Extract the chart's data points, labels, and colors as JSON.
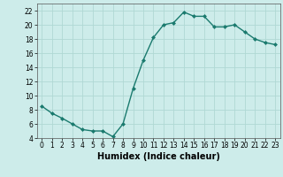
{
  "x": [
    0,
    1,
    2,
    3,
    4,
    5,
    6,
    7,
    8,
    9,
    10,
    11,
    12,
    13,
    14,
    15,
    16,
    17,
    18,
    19,
    20,
    21,
    22,
    23
  ],
  "y": [
    8.5,
    7.5,
    6.8,
    6.0,
    5.2,
    5.0,
    5.0,
    4.2,
    6.0,
    11.0,
    15.0,
    18.2,
    20.0,
    20.3,
    21.8,
    21.2,
    21.2,
    19.7,
    19.7,
    20.0,
    19.0,
    18.0,
    17.5,
    17.2
  ],
  "line_color": "#1a7a6e",
  "marker": "D",
  "marker_size": 2,
  "line_width": 1.0,
  "bg_color": "#cdecea",
  "grid_color": "#b0d8d4",
  "xlabel": "Humidex (Indice chaleur)",
  "ylim": [
    4,
    23
  ],
  "xlim": [
    -0.5,
    23.5
  ],
  "yticks": [
    4,
    6,
    8,
    10,
    12,
    14,
    16,
    18,
    20,
    22
  ],
  "xticks": [
    0,
    1,
    2,
    3,
    4,
    5,
    6,
    7,
    8,
    9,
    10,
    11,
    12,
    13,
    14,
    15,
    16,
    17,
    18,
    19,
    20,
    21,
    22,
    23
  ],
  "tick_label_fontsize": 5.5,
  "xlabel_fontsize": 7.0
}
